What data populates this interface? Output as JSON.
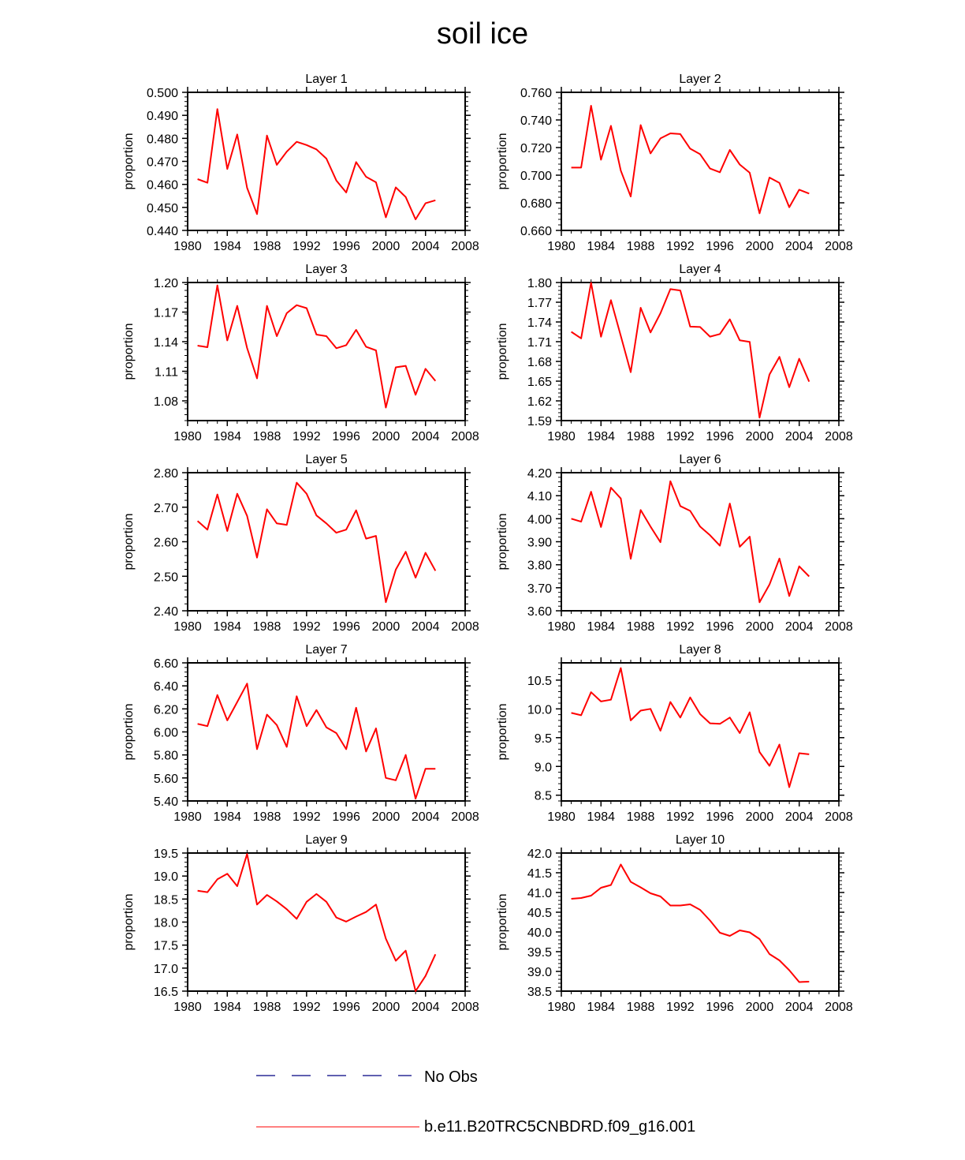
{
  "title": "soil ice",
  "colors": {
    "model": "#ff0000",
    "obs": "#000080",
    "axis": "#000000"
  },
  "legend": {
    "obs_label": "No Obs",
    "model_label": "b.e11.B20TRC5CNBDRD.f09_g16.001"
  },
  "chart_data": [
    {
      "type": "line",
      "title": "Layer 1",
      "xlabel": "",
      "ylabel": "proportion",
      "xlim": [
        1980,
        2008
      ],
      "xticks": [
        1980,
        1984,
        1988,
        1992,
        1996,
        2000,
        2004,
        2008
      ],
      "ylim": [
        0.44,
        0.5
      ],
      "yticks": [
        "0.440",
        "0.450",
        "0.460",
        "0.470",
        "0.480",
        "0.490",
        "0.500"
      ],
      "series": [
        {
          "name": "b.e11.B20TRC5CNBDRD.f09_g16.001",
          "x": [
            1981,
            1982,
            1983,
            1984,
            1985,
            1986,
            1987,
            1988,
            1989,
            1990,
            1991,
            1992,
            1993,
            1994,
            1995,
            1996,
            1997,
            1998,
            1999,
            2000,
            2001,
            2002,
            2003,
            2004,
            2005
          ],
          "values": [
            0.4623,
            0.4607,
            0.4927,
            0.4667,
            0.4817,
            0.4585,
            0.4471,
            0.4812,
            0.4685,
            0.4742,
            0.4785,
            0.4771,
            0.4752,
            0.4712,
            0.4617,
            0.4565,
            0.4697,
            0.4633,
            0.4609,
            0.4457,
            0.4587,
            0.4545,
            0.4448,
            0.4518,
            0.4531
          ]
        }
      ]
    },
    {
      "type": "line",
      "title": "Layer 2",
      "xlabel": "",
      "ylabel": "proportion",
      "xlim": [
        1980,
        2008
      ],
      "xticks": [
        1980,
        1984,
        1988,
        1992,
        1996,
        2000,
        2004,
        2008
      ],
      "ylim": [
        0.66,
        0.76
      ],
      "yticks": [
        "0.660",
        "0.680",
        "0.700",
        "0.720",
        "0.740",
        "0.760"
      ],
      "series": [
        {
          "name": "b.e11.B20TRC5CNBDRD.f09_g16.001",
          "x": [
            1981,
            1982,
            1983,
            1984,
            1985,
            1986,
            1987,
            1988,
            1989,
            1990,
            1991,
            1992,
            1993,
            1994,
            1995,
            1996,
            1997,
            1998,
            1999,
            2000,
            2001,
            2002,
            2003,
            2004,
            2005
          ],
          "values": [
            0.7055,
            0.7055,
            0.7503,
            0.7112,
            0.7357,
            0.7033,
            0.6846,
            0.7363,
            0.7158,
            0.7266,
            0.7303,
            0.7298,
            0.7192,
            0.7152,
            0.7048,
            0.7021,
            0.7183,
            0.7077,
            0.7018,
            0.6724,
            0.6983,
            0.6944,
            0.6768,
            0.6895,
            0.6867
          ]
        }
      ]
    },
    {
      "type": "line",
      "title": "Layer 3",
      "xlabel": "",
      "ylabel": "proportion",
      "xlim": [
        1980,
        2008
      ],
      "xticks": [
        1980,
        1984,
        1988,
        1992,
        1996,
        2000,
        2004,
        2008
      ],
      "ylim": [
        1.06,
        1.2
      ],
      "yticks": [
        "1.08",
        "1.11",
        "1.14",
        "1.17",
        "1.20"
      ],
      "series": [
        {
          "name": "b.e11.B20TRC5CNBDRD.f09_g16.001",
          "x": [
            1981,
            1982,
            1983,
            1984,
            1985,
            1986,
            1987,
            1988,
            1989,
            1990,
            1991,
            1992,
            1993,
            1994,
            1995,
            1996,
            1997,
            1998,
            1999,
            2000,
            2001,
            2002,
            2003,
            2004,
            2005
          ],
          "values": [
            1.136,
            1.1344,
            1.1971,
            1.1413,
            1.1763,
            1.1336,
            1.1028,
            1.1763,
            1.1456,
            1.1689,
            1.177,
            1.174,
            1.1472,
            1.1456,
            1.1334,
            1.1365,
            1.152,
            1.1349,
            1.1312,
            1.0732,
            1.114,
            1.1155,
            1.0862,
            1.1125,
            1.1002
          ]
        }
      ]
    },
    {
      "type": "line",
      "title": "Layer 4",
      "xlabel": "",
      "ylabel": "proportion",
      "xlim": [
        1980,
        2008
      ],
      "xticks": [
        1980,
        1984,
        1988,
        1992,
        1996,
        2000,
        2004,
        2008
      ],
      "ylim": [
        1.59,
        1.8
      ],
      "yticks": [
        "1.59",
        "1.62",
        "1.65",
        "1.68",
        "1.71",
        "1.74",
        "1.77",
        "1.80"
      ],
      "series": [
        {
          "name": "b.e11.B20TRC5CNBDRD.f09_g16.001",
          "x": [
            1981,
            1982,
            1983,
            1984,
            1985,
            1986,
            1987,
            1988,
            1989,
            1990,
            1991,
            1992,
            1993,
            1994,
            1995,
            1996,
            1997,
            1998,
            1999,
            2000,
            2001,
            2002,
            2003,
            2004,
            2005
          ],
          "values": [
            1.725,
            1.715,
            1.7997,
            1.7176,
            1.7731,
            1.7189,
            1.6637,
            1.7616,
            1.724,
            1.7532,
            1.7899,
            1.7879,
            1.7329,
            1.7323,
            1.7177,
            1.7217,
            1.744,
            1.712,
            1.7098,
            1.5945,
            1.6601,
            1.687,
            1.6408,
            1.6841,
            1.6493
          ]
        }
      ]
    },
    {
      "type": "line",
      "title": "Layer 5",
      "xlabel": "",
      "ylabel": "proportion",
      "xlim": [
        1980,
        2008
      ],
      "xticks": [
        1980,
        1984,
        1988,
        1992,
        1996,
        2000,
        2004,
        2008
      ],
      "ylim": [
        2.4,
        2.8
      ],
      "yticks": [
        "2.40",
        "2.50",
        "2.60",
        "2.70",
        "2.80"
      ],
      "series": [
        {
          "name": "b.e11.B20TRC5CNBDRD.f09_g16.001",
          "x": [
            1981,
            1982,
            1983,
            1984,
            1985,
            1986,
            1987,
            1988,
            1989,
            1990,
            1991,
            1992,
            1993,
            1994,
            1995,
            1996,
            1997,
            1998,
            1999,
            2000,
            2001,
            2002,
            2003,
            2004,
            2005
          ],
          "values": [
            2.66,
            2.635,
            2.737,
            2.631,
            2.739,
            2.675,
            2.554,
            2.694,
            2.653,
            2.649,
            2.771,
            2.739,
            2.676,
            2.653,
            2.626,
            2.635,
            2.691,
            2.609,
            2.617,
            2.425,
            2.519,
            2.571,
            2.496,
            2.568,
            2.516
          ]
        }
      ]
    },
    {
      "type": "line",
      "title": "Layer 6",
      "xlabel": "",
      "ylabel": "proportion",
      "xlim": [
        1980,
        2008
      ],
      "xticks": [
        1980,
        1984,
        1988,
        1992,
        1996,
        2000,
        2004,
        2008
      ],
      "ylim": [
        3.6,
        4.2
      ],
      "yticks": [
        "3.60",
        "3.70",
        "3.80",
        "3.90",
        "4.00",
        "4.10",
        "4.20"
      ],
      "series": [
        {
          "name": "b.e11.B20TRC5CNBDRD.f09_g16.001",
          "x": [
            1981,
            1982,
            1983,
            1984,
            1985,
            1986,
            1987,
            1988,
            1989,
            1990,
            1991,
            1992,
            1993,
            1994,
            1995,
            1996,
            1997,
            1998,
            1999,
            2000,
            2001,
            2002,
            2003,
            2004,
            2005
          ],
          "values": [
            4.0,
            3.987,
            4.117,
            3.964,
            4.135,
            4.088,
            3.826,
            4.038,
            3.966,
            3.898,
            4.163,
            4.055,
            4.034,
            3.966,
            3.928,
            3.883,
            4.066,
            3.878,
            3.922,
            3.637,
            3.714,
            3.827,
            3.664,
            3.793,
            3.749
          ]
        }
      ]
    },
    {
      "type": "line",
      "title": "Layer 7",
      "xlabel": "",
      "ylabel": "proportion",
      "xlim": [
        1980,
        2008
      ],
      "xticks": [
        1980,
        1984,
        1988,
        1992,
        1996,
        2000,
        2004,
        2008
      ],
      "ylim": [
        5.4,
        6.6
      ],
      "yticks": [
        "5.40",
        "5.60",
        "5.80",
        "6.00",
        "6.20",
        "6.40",
        "6.60"
      ],
      "series": [
        {
          "name": "b.e11.B20TRC5CNBDRD.f09_g16.001",
          "x": [
            1981,
            1982,
            1983,
            1984,
            1985,
            1986,
            1987,
            1988,
            1989,
            1990,
            1991,
            1992,
            1993,
            1994,
            1995,
            1996,
            1997,
            1998,
            1999,
            2000,
            2001,
            2002,
            2003,
            2004,
            2005
          ],
          "values": [
            6.07,
            6.05,
            6.32,
            6.1,
            6.26,
            6.42,
            5.85,
            6.15,
            6.06,
            5.87,
            6.31,
            6.05,
            6.19,
            6.04,
            5.99,
            5.85,
            6.21,
            5.83,
            6.03,
            5.6,
            5.58,
            5.8,
            5.42,
            5.68,
            5.68
          ]
        }
      ]
    },
    {
      "type": "line",
      "title": "Layer 8",
      "xlabel": "",
      "ylabel": "proportion",
      "xlim": [
        1980,
        2008
      ],
      "xticks": [
        1980,
        1984,
        1988,
        1992,
        1996,
        2000,
        2004,
        2008
      ],
      "ylim": [
        8.4,
        10.8
      ],
      "yticks": [
        "8.5",
        "9.0",
        "9.5",
        "10.0",
        "10.5"
      ],
      "series": [
        {
          "name": "b.e11.B20TRC5CNBDRD.f09_g16.001",
          "x": [
            1981,
            1982,
            1983,
            1984,
            1985,
            1986,
            1987,
            1988,
            1989,
            1990,
            1991,
            1992,
            1993,
            1994,
            1995,
            1996,
            1997,
            1998,
            1999,
            2000,
            2001,
            2002,
            2003,
            2004,
            2005
          ],
          "values": [
            9.93,
            9.89,
            10.29,
            10.13,
            10.16,
            10.71,
            9.8,
            9.97,
            10.0,
            9.62,
            10.12,
            9.85,
            10.2,
            9.91,
            9.75,
            9.74,
            9.85,
            9.58,
            9.94,
            9.25,
            9.01,
            9.38,
            8.64,
            9.23,
            9.21
          ]
        }
      ]
    },
    {
      "type": "line",
      "title": "Layer 9",
      "xlabel": "",
      "ylabel": "proportion",
      "xlim": [
        1980,
        2008
      ],
      "xticks": [
        1980,
        1984,
        1988,
        1992,
        1996,
        2000,
        2004,
        2008
      ],
      "ylim": [
        16.5,
        19.5
      ],
      "yticks": [
        "16.5",
        "17.0",
        "17.5",
        "18.0",
        "18.5",
        "19.0",
        "19.5"
      ],
      "series": [
        {
          "name": "b.e11.B20TRC5CNBDRD.f09_g16.001",
          "x": [
            1981,
            1982,
            1983,
            1984,
            1985,
            1986,
            1987,
            1988,
            1989,
            1990,
            1991,
            1992,
            1993,
            1994,
            1995,
            1996,
            1997,
            1998,
            1999,
            2000,
            2001,
            2002,
            2003,
            2004,
            2005
          ],
          "values": [
            18.68,
            18.65,
            18.93,
            19.05,
            18.78,
            19.48,
            18.38,
            18.59,
            18.45,
            18.28,
            18.07,
            18.44,
            18.61,
            18.44,
            18.1,
            18.01,
            18.12,
            18.22,
            18.38,
            17.64,
            17.16,
            17.38,
            16.5,
            16.83,
            17.3
          ]
        }
      ]
    },
    {
      "type": "line",
      "title": "Layer 10",
      "xlabel": "",
      "ylabel": "proportion",
      "xlim": [
        1980,
        2008
      ],
      "xticks": [
        1980,
        1984,
        1988,
        1992,
        1996,
        2000,
        2004,
        2008
      ],
      "ylim": [
        38.5,
        42.0
      ],
      "yticks": [
        "38.5",
        "39.0",
        "39.5",
        "40.0",
        "40.5",
        "41.0",
        "41.5",
        "42.0"
      ],
      "series": [
        {
          "name": "b.e11.B20TRC5CNBDRD.f09_g16.001",
          "x": [
            1981,
            1982,
            1983,
            1984,
            1985,
            1986,
            1987,
            1988,
            1989,
            1990,
            1991,
            1992,
            1993,
            1994,
            1995,
            1996,
            1997,
            1998,
            1999,
            2000,
            2001,
            2002,
            2003,
            2004,
            2005
          ],
          "values": [
            40.84,
            40.86,
            40.92,
            41.12,
            41.19,
            41.71,
            41.27,
            41.13,
            40.98,
            40.9,
            40.67,
            40.67,
            40.7,
            40.56,
            40.29,
            39.98,
            39.9,
            40.04,
            39.99,
            39.82,
            39.44,
            39.28,
            39.03,
            38.73,
            38.74
          ]
        }
      ]
    }
  ]
}
